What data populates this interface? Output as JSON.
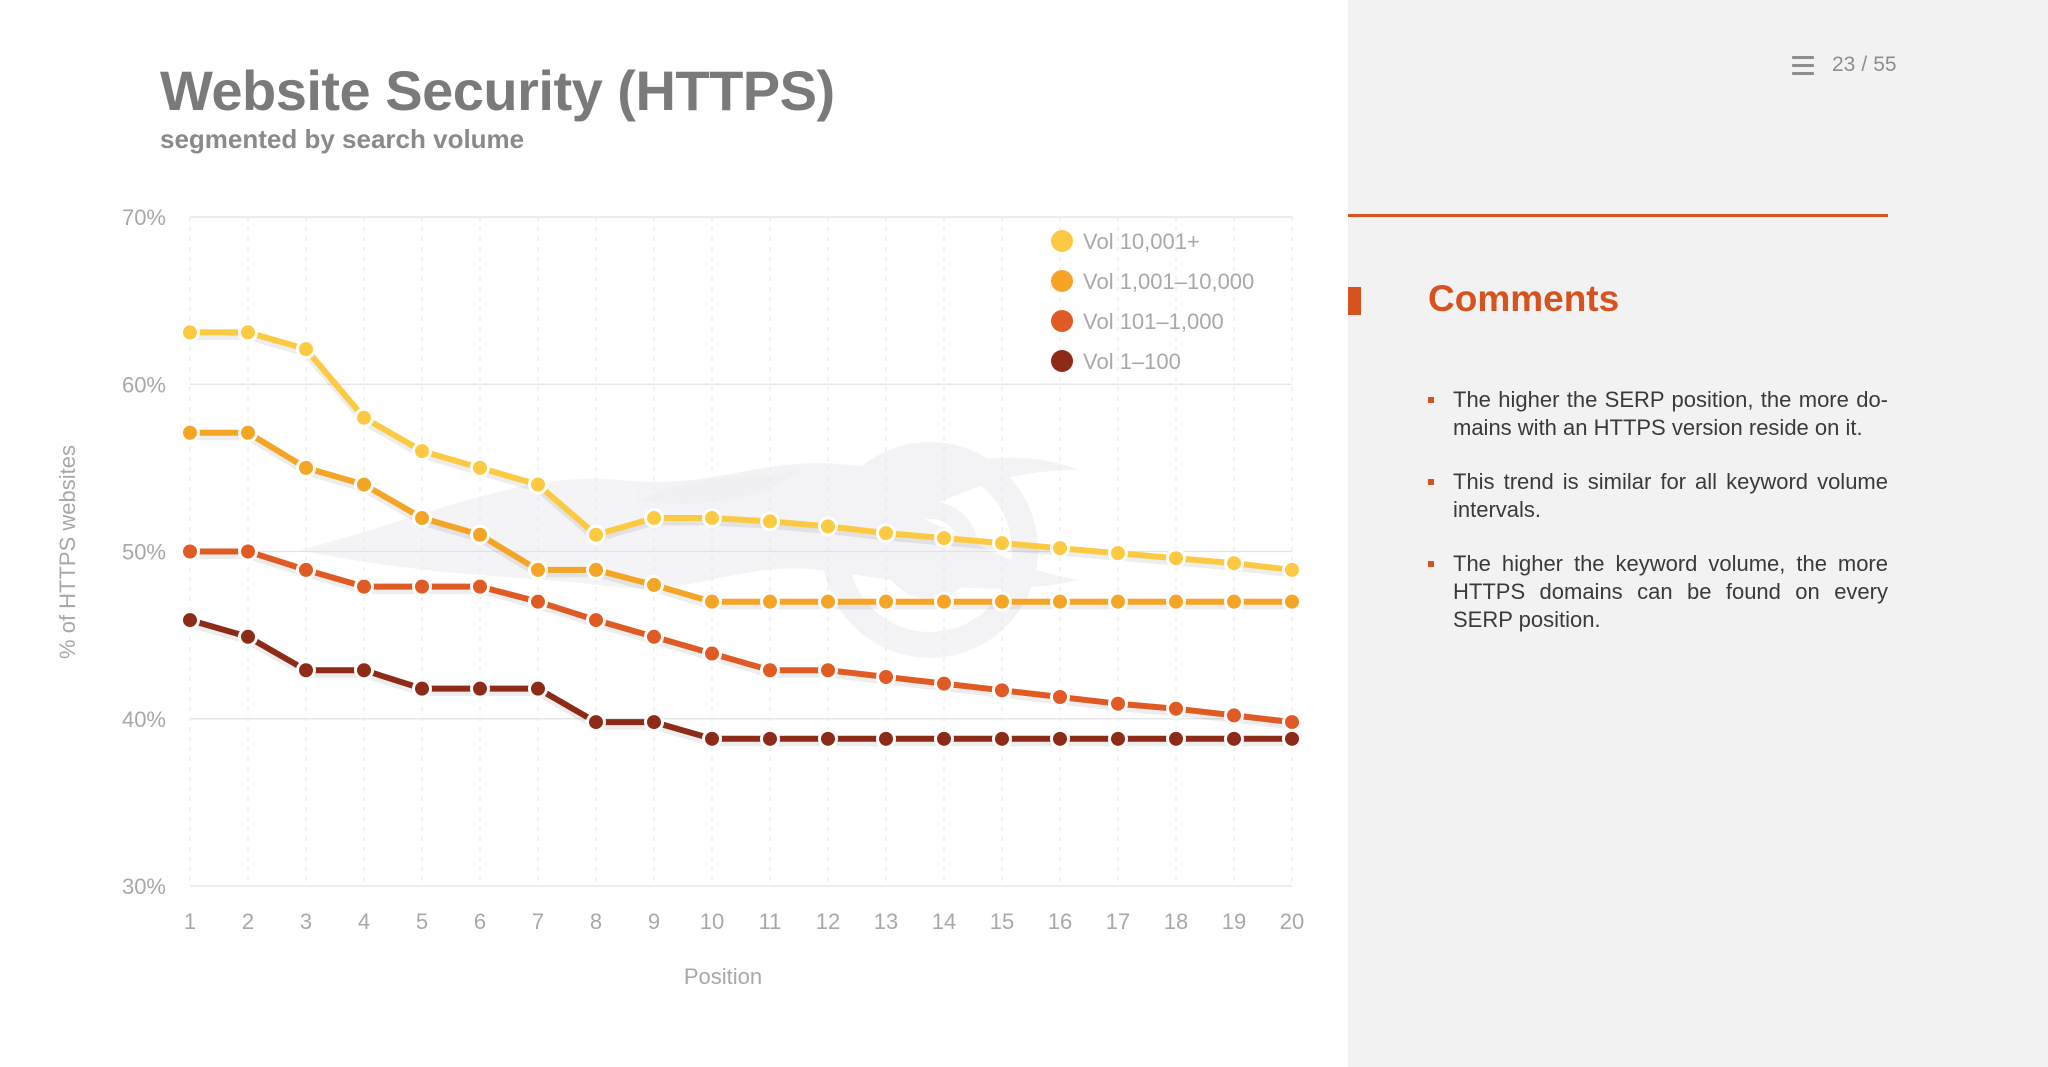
{
  "slide": {
    "title": "Website Security (HTTPS)",
    "subtitle": "segmented by search volume",
    "page_current": "23",
    "page_separator": "/",
    "page_total": "55"
  },
  "comments": {
    "heading": "Comments",
    "items": [
      "The higher the SERP position, the more do-mains with an HTTPS version reside on it.",
      "This trend is similar for all keyword volume intervals.",
      "The higher the keyword volume, the more HTTPS domains can be found on every SERP position."
    ]
  },
  "colors": {
    "accent": "#d6521e",
    "gridline": "#e2e2e2",
    "axis_text": "#a8a8a8"
  },
  "icons": [
    "menu-icon",
    "watermark-flame-logo"
  ],
  "chart_data": {
    "type": "line",
    "title": "Website Security (HTTPS)",
    "subtitle": "segmented by search volume",
    "xlabel": "Position",
    "ylabel": "% of HTTPS websites",
    "x": [
      1,
      2,
      3,
      4,
      5,
      6,
      7,
      8,
      9,
      10,
      11,
      12,
      13,
      14,
      15,
      16,
      17,
      18,
      19,
      20
    ],
    "xlim": [
      1,
      20
    ],
    "ylim": [
      30,
      70
    ],
    "yticks": [
      30,
      40,
      50,
      60,
      70
    ],
    "ytick_suffix": "%",
    "grid": true,
    "legend_position": "top-right",
    "series": [
      {
        "name": "Vol 10,001+",
        "color": "#fcc942",
        "values": [
          63.1,
          63.1,
          62.1,
          58,
          56,
          55,
          54,
          51,
          52,
          52,
          51.8,
          51.5,
          51.1,
          50.8,
          50.5,
          50.2,
          49.9,
          49.6,
          49.3,
          48.9
        ]
      },
      {
        "name": "Vol 1,001–10,000",
        "color": "#f5a526",
        "values": [
          57.1,
          57.1,
          55,
          54,
          52,
          51,
          48.9,
          48.9,
          48,
          47,
          47,
          47,
          47,
          47,
          47,
          47,
          47,
          47,
          47,
          47
        ]
      },
      {
        "name": "Vol 101–1,000",
        "color": "#e05a23",
        "values": [
          50,
          50,
          48.9,
          47.9,
          47.9,
          47.9,
          47,
          45.9,
          44.9,
          43.9,
          42.9,
          42.9,
          42.5,
          42.1,
          41.7,
          41.3,
          40.9,
          40.6,
          40.2,
          39.8
        ]
      },
      {
        "name": "Vol 1–100",
        "color": "#8e2a18",
        "values": [
          45.9,
          44.9,
          42.9,
          42.9,
          41.8,
          41.8,
          41.8,
          39.8,
          39.8,
          38.8,
          38.8,
          38.8,
          38.8,
          38.8,
          38.8,
          38.8,
          38.8,
          38.8,
          38.8,
          38.8
        ]
      }
    ]
  }
}
